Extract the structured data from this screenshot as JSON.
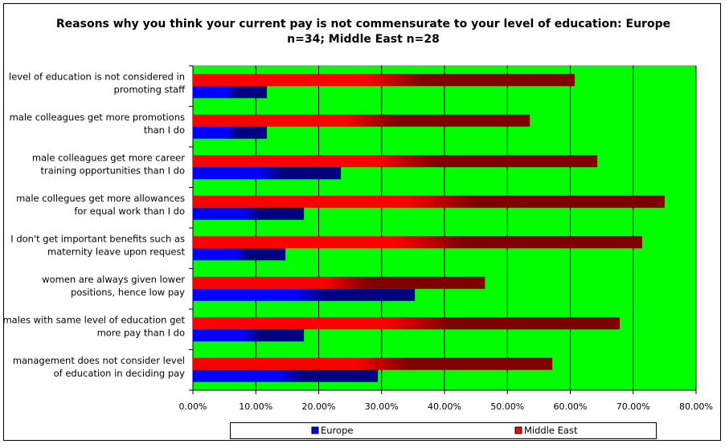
{
  "chart_data": {
    "type": "bar",
    "orientation": "horizontal",
    "title_line1": "Reasons why you think your current pay is not commensurate to your level of education: Europe",
    "title_line2": "n=34; Middle East n=28",
    "categories": [
      [
        "level of education is not considered in",
        "promoting staff"
      ],
      [
        "male colleagues get more promotions",
        "than I do"
      ],
      [
        "male colleagues get more career",
        "training opportunities than I do"
      ],
      [
        "male collegues get more allowances",
        "for equal work than I do"
      ],
      [
        "I don't get important benefits such as",
        "maternity leave upon request"
      ],
      [
        "women are always given lower",
        "positions, hence low pay"
      ],
      [
        "males with same level of education get",
        "more pay than I do"
      ],
      [
        "management does not consider level",
        "of education in deciding pay"
      ]
    ],
    "series": [
      {
        "name": "Europe",
        "color": "#0000ff",
        "dark": "#000080",
        "values": [
          11.76,
          11.76,
          23.53,
          17.65,
          14.71,
          35.29,
          17.65,
          29.41
        ]
      },
      {
        "name": "Middle East",
        "color": "#ff0000",
        "dark": "#800000",
        "values": [
          60.71,
          53.57,
          64.29,
          75.0,
          71.43,
          46.43,
          67.86,
          57.14
        ]
      }
    ],
    "xlim": [
      0,
      80
    ],
    "xticks": [
      "0.00%",
      "10.00%",
      "20.00%",
      "30.00%",
      "40.00%",
      "50.00%",
      "60.00%",
      "70.00%",
      "80.00%"
    ],
    "grid": true,
    "plot_background": "#00ff00",
    "legend_position": "bottom"
  }
}
